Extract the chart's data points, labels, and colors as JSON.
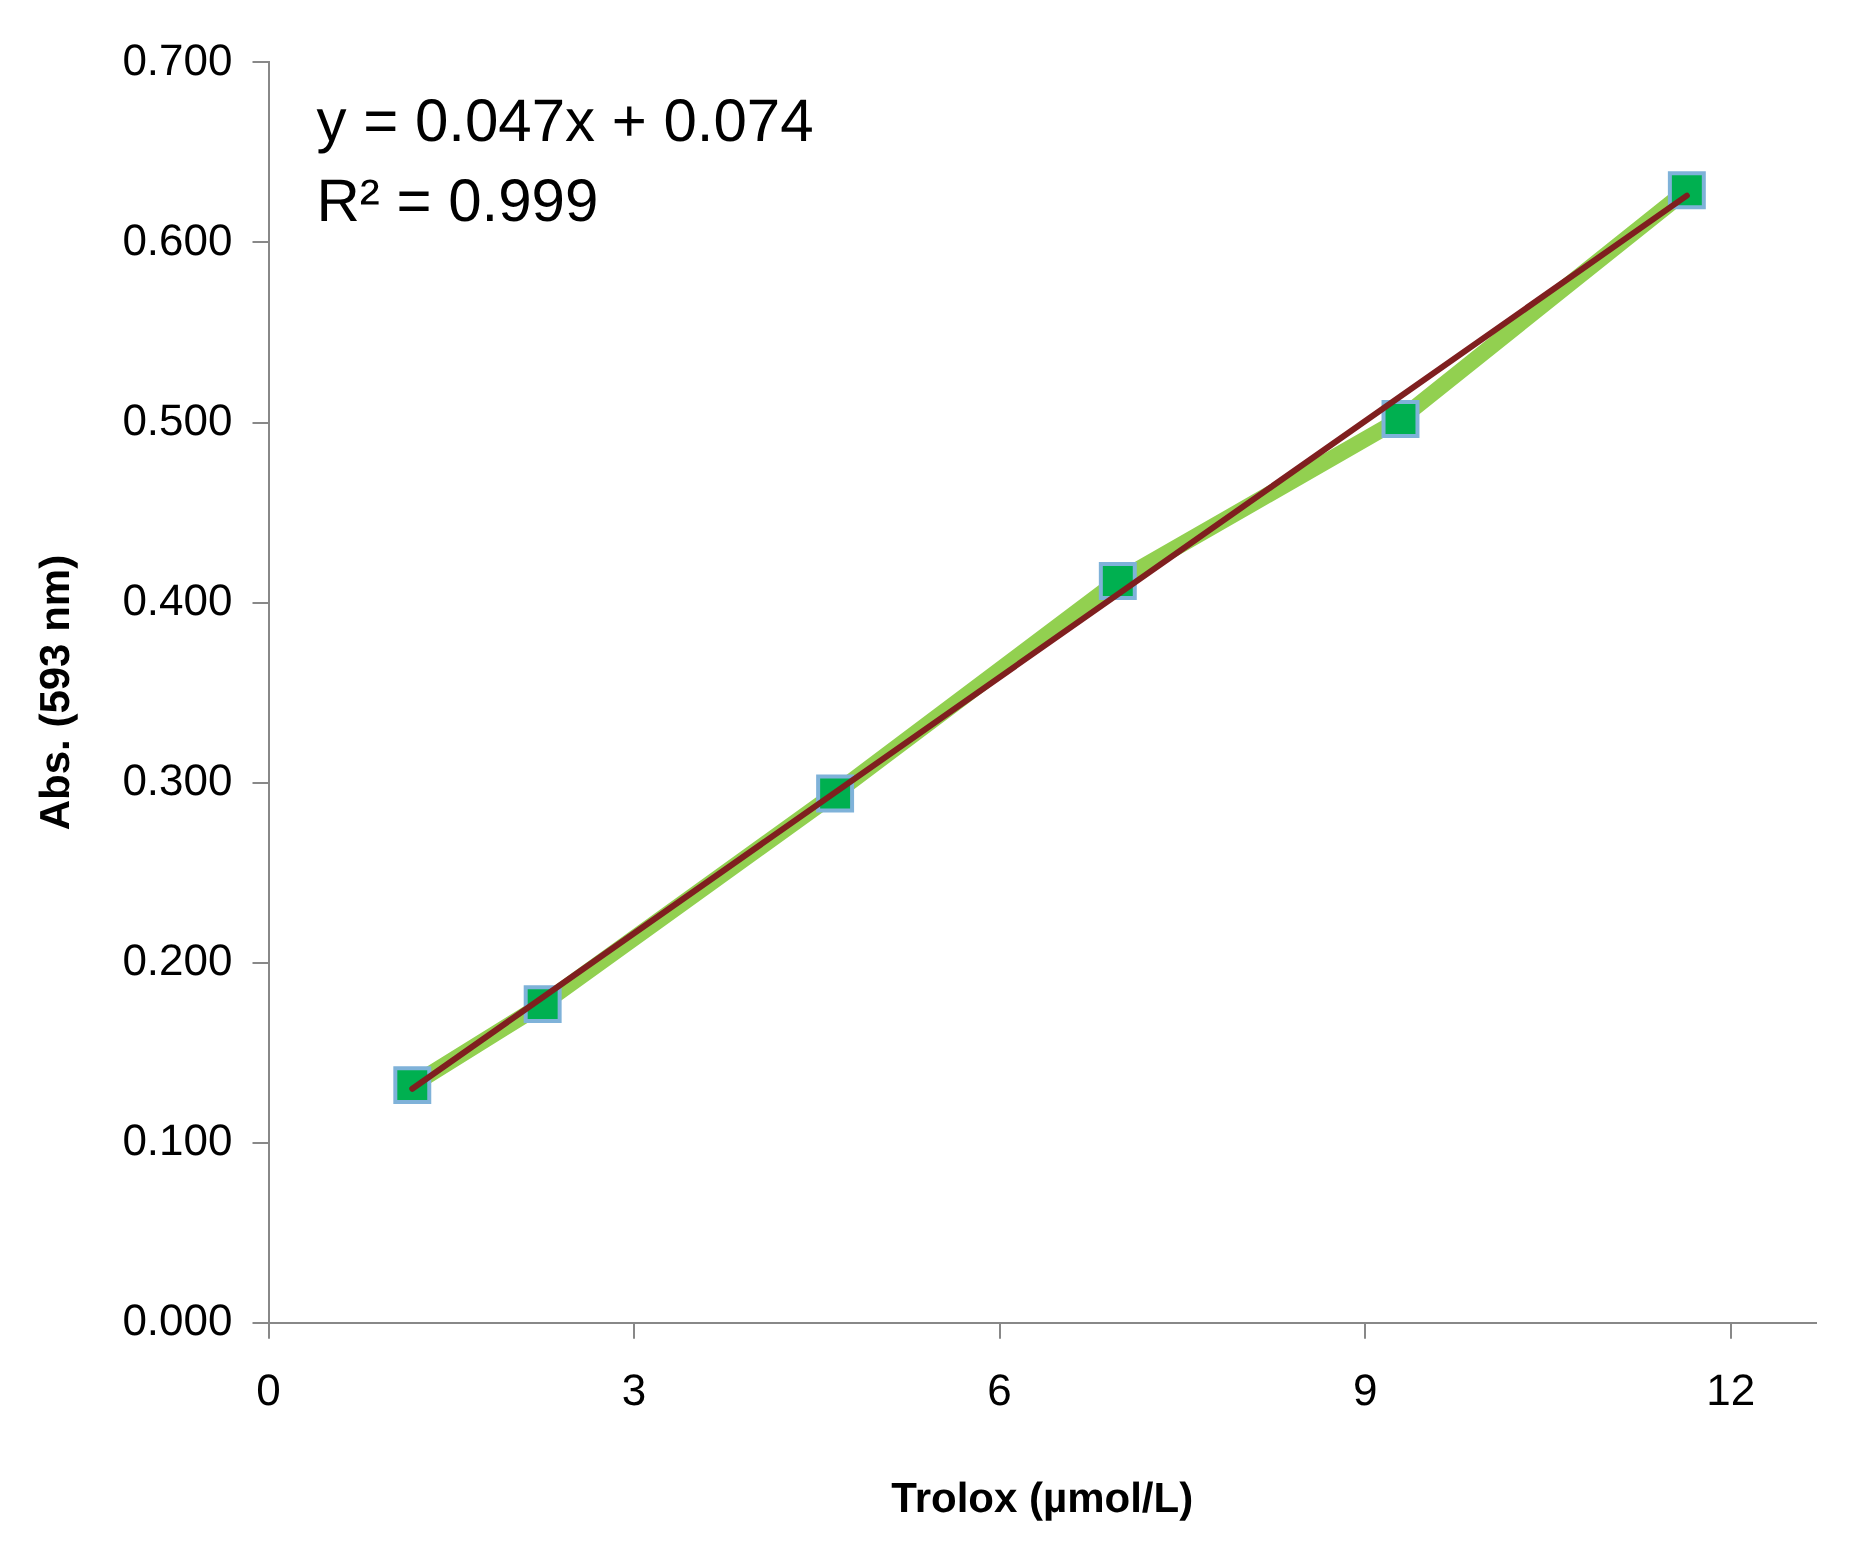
{
  "chart_data": {
    "type": "line",
    "xlabel": "Trolox (µmol/L)",
    "ylabel": "Abs. (593 nm)",
    "xlim": [
      0,
      12.7
    ],
    "xticks": [
      0,
      3,
      6,
      9,
      12
    ],
    "ylim": [
      0,
      0.7
    ],
    "yticks": [
      {
        "value": 0,
        "label": "0.000"
      },
      {
        "value": 0.1,
        "label": "0.100"
      },
      {
        "value": 0.2,
        "label": "0.200"
      },
      {
        "value": 0.3,
        "label": "0.300"
      },
      {
        "value": 0.4,
        "label": "0.400"
      },
      {
        "value": 0.5,
        "label": "0.500"
      },
      {
        "value": 0.6,
        "label": "0.600"
      },
      {
        "value": 0.7,
        "label": "0.700"
      }
    ],
    "grid": false,
    "legend": false,
    "series": [
      {
        "type": "line",
        "color": "#92d050",
        "marker": "square",
        "x": [
          1.18,
          2.25,
          4.65,
          6.97,
          9.29,
          11.64
        ],
        "values": [
          0.132,
          0.177,
          0.294,
          0.412,
          0.502,
          0.629
        ]
      },
      {
        "type": "line",
        "color": "#7f1f1f",
        "marker": "none",
        "x": [
          1.18,
          11.64
        ],
        "values": [
          0.13,
          0.626
        ]
      }
    ],
    "annotations": [
      "y = 0.047x + 0.074",
      "R² = 0.999"
    ]
  }
}
